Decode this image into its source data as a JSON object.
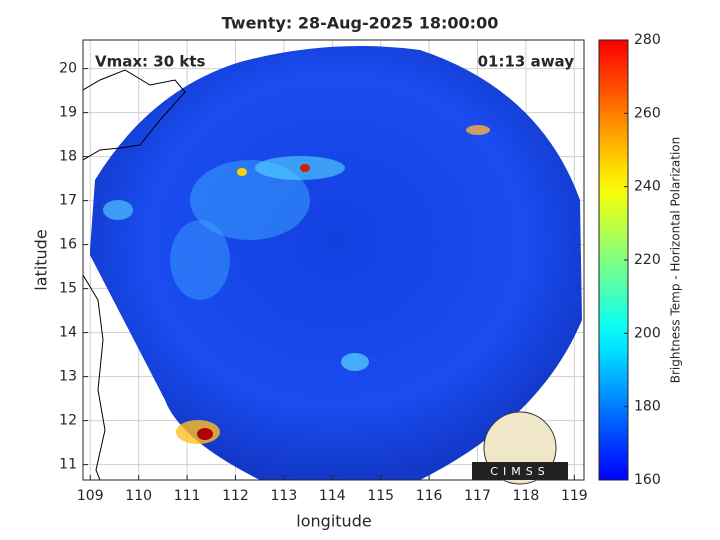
{
  "chart_data": {
    "type": "image",
    "title": "Twenty: 28-Aug-2025 18:00:00",
    "x_label": "longitude",
    "y_label": "latitude",
    "xlim": [
      108.85,
      119.2
    ],
    "xticks": [
      109,
      110,
      111,
      112,
      113,
      114,
      115,
      116,
      117,
      118,
      119
    ],
    "ylim": [
      10.65,
      20.65
    ],
    "yticks": [
      11,
      12,
      13,
      14,
      15,
      16,
      17,
      18,
      19,
      20
    ],
    "grid": true,
    "annotations": [
      "Vmax: 30 kts",
      "01:13 away"
    ],
    "logo": "CIMSS",
    "colorbar": {
      "label": "Brightness Temp - Horizontal Polarization",
      "colormap": "jet",
      "lim": [
        160,
        280
      ],
      "ticks": [
        160,
        180,
        200,
        220,
        240,
        260,
        280
      ]
    }
  }
}
